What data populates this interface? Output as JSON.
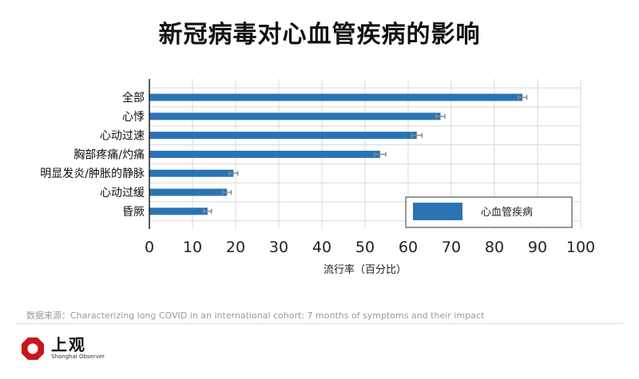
{
  "title": "新冠病毒对心血管疾病的影响",
  "source": "数据来源：Characterizing long COVID in an international cohort: 7 months of symptoms and their impact",
  "brand": {
    "name": "上观",
    "sub": "Shanghai Observer"
  },
  "colors": {
    "bar": "#2a74b5",
    "error": "#8c8c8c",
    "grid": "#d9d9d9"
  },
  "chart_data": {
    "type": "bar",
    "orientation": "horizontal",
    "title": "新冠病毒对心血管疾病的影响",
    "xlabel": "流行率（百分比）",
    "ylabel": "",
    "xlim": [
      0,
      100
    ],
    "xticks": [
      0,
      10,
      20,
      30,
      40,
      50,
      60,
      70,
      80,
      90,
      100
    ],
    "grid": true,
    "legend_position": "bottom-right",
    "categories": [
      "全部",
      "心悸",
      "心动过速",
      "胸部疼痛/灼痛",
      "明显发炎/肿胀的静脉",
      "心动过缓",
      "昏厥"
    ],
    "series": [
      {
        "name": "心血管疾病",
        "values": [
          86.5,
          67.5,
          62,
          53.5,
          19.5,
          18,
          13.5
        ],
        "error": [
          1.0,
          1.0,
          1.2,
          1.3,
          1.0,
          1.0,
          0.9
        ]
      }
    ]
  }
}
